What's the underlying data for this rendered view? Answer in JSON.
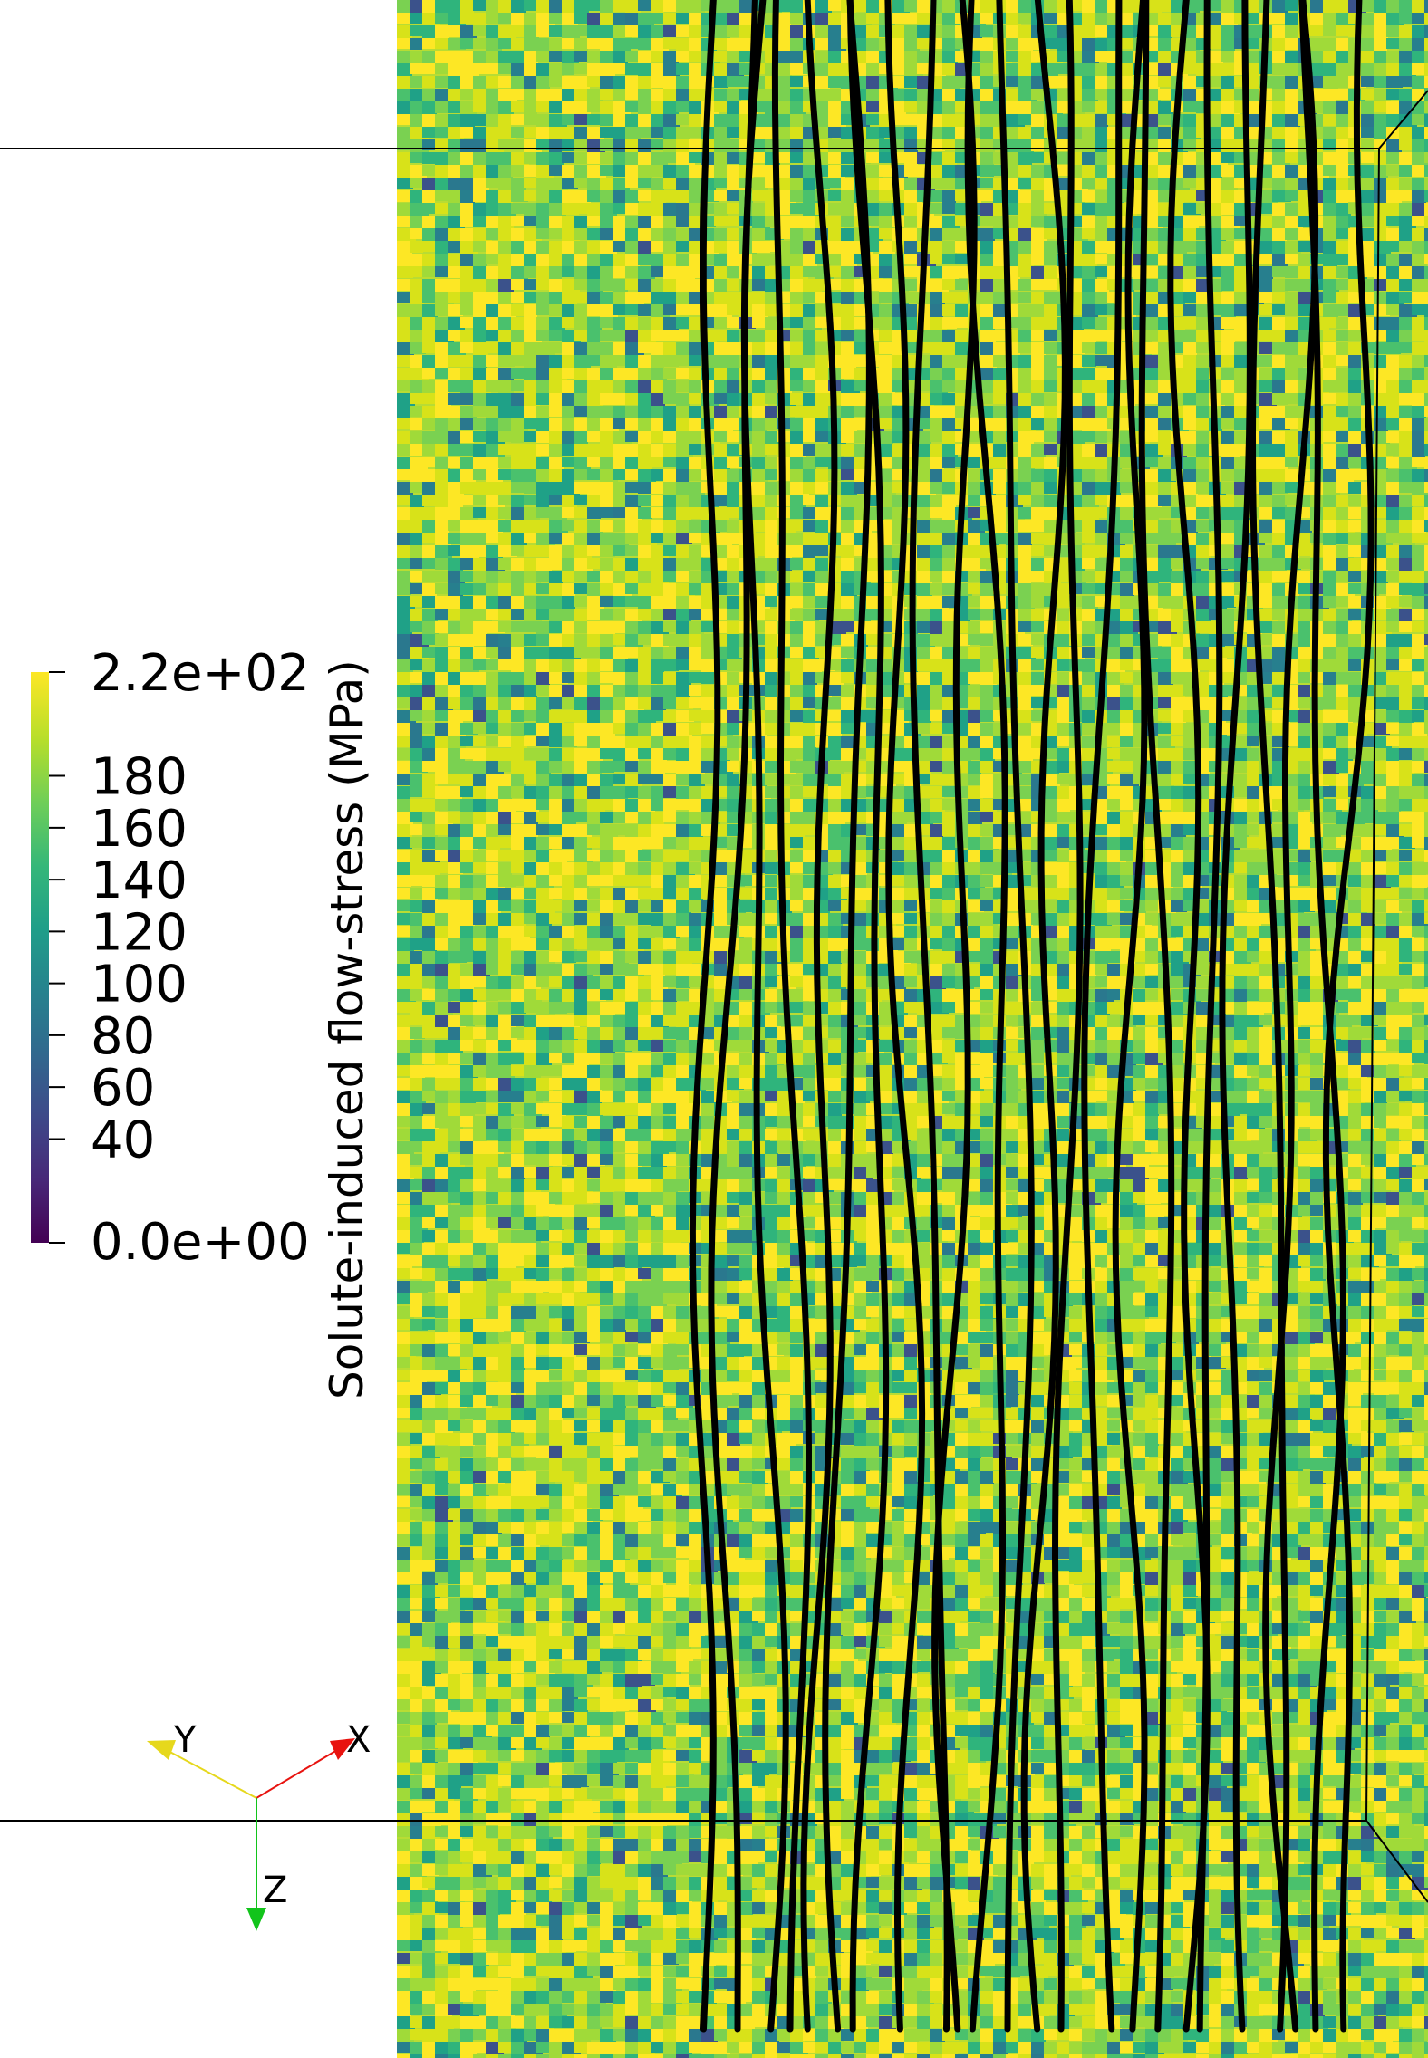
{
  "viewport": {
    "background": "#ffffff",
    "field_colors": [
      "#d8e219",
      "#fde725",
      "#a0da39",
      "#7ad151",
      "#4ac16d",
      "#2fb47c",
      "#1fa187",
      "#22a884",
      "#277f8e",
      "#2a788e",
      "#31688e",
      "#3b528b"
    ],
    "dislocation_color": "#000000",
    "dislocation_count": 24
  },
  "colorbar": {
    "title": "Solute-induced flow-stress (MPa)",
    "max_label": "2.2e+02",
    "min_label": "0.0e+00",
    "ticks": [
      "180",
      "160",
      "140",
      "120",
      "100",
      "80",
      "60",
      "40"
    ],
    "tick_values": [
      180,
      160,
      140,
      120,
      100,
      80,
      60,
      40
    ],
    "range": [
      0,
      220
    ],
    "colormap": [
      "#440154",
      "#482878",
      "#3e4989",
      "#31688e",
      "#26828e",
      "#1f9e89",
      "#35b779",
      "#6ece58",
      "#b5de2b",
      "#fde725"
    ]
  },
  "orientation_axes": {
    "x_label": "X",
    "y_label": "Y",
    "z_label": "Z",
    "x_color": "#e8130f",
    "y_color": "#e6d81c",
    "z_color": "#12c41b"
  }
}
